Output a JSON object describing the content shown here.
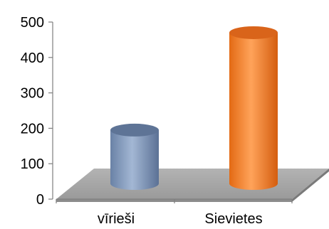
{
  "chart_data": {
    "type": "bar",
    "style": "3d-cylinder",
    "categories": [
      "vīrieši",
      "Sievietes"
    ],
    "values": [
      215,
      490
    ],
    "ylim": [
      0,
      500
    ],
    "yticks": [
      0,
      100,
      200,
      300,
      400,
      500
    ],
    "ytick_labels": [
      "0",
      "100",
      "200",
      "300",
      "400",
      "500"
    ],
    "grid": false,
    "legend": "none",
    "colors": {
      "bars": [
        "#7f96b8",
        "#f07f2a"
      ],
      "bar_tops": [
        "#5e7496",
        "#d9641a"
      ],
      "floor": "#a6a6a6",
      "floor_edge": "#8c8c8c",
      "axis": "#7f7f7f"
    }
  }
}
